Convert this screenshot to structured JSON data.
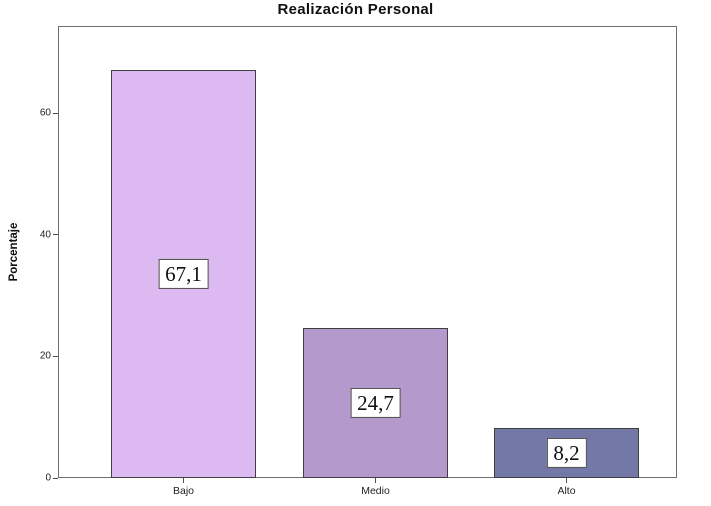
{
  "chart_data": {
    "type": "bar",
    "title": "Realización Personal",
    "xlabel": "",
    "ylabel": "Porcentaje",
    "categories": [
      "Bajo",
      "Medio",
      "Alto"
    ],
    "values": [
      67.1,
      24.7,
      8.2
    ],
    "value_labels": [
      "67,1",
      "24,7",
      "8,2"
    ],
    "yticks": [
      0,
      20,
      40,
      60
    ],
    "ylim": [
      0,
      74.4
    ],
    "grid": false,
    "legend": "none",
    "bar_colors": [
      "#dcb9f0",
      "#b499cd",
      "#7378a6"
    ],
    "bar_border_color": "#3f3f3f",
    "axis_color": "#6e6e6e",
    "tick_color": "#4f4f4f",
    "label_box": {
      "background": "#ffffff",
      "border_color": "#4a4a4a"
    }
  }
}
